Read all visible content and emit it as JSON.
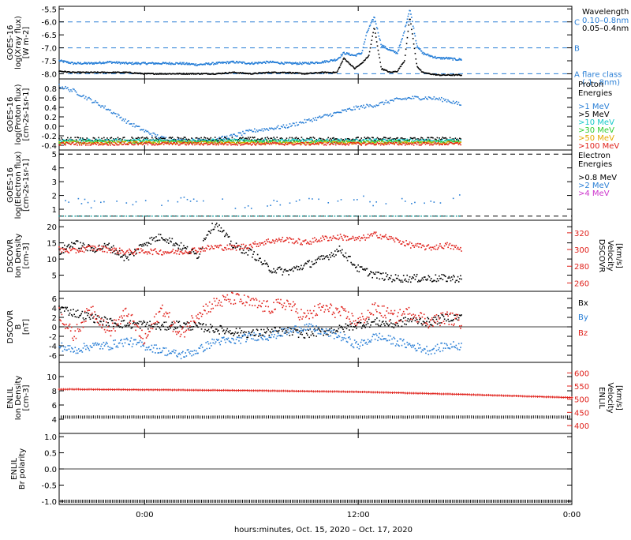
{
  "x_axis": {
    "label": "hours:minutes, Oct. 15, 2020 – Oct. 17, 2020",
    "range_hours": [
      -4.8,
      24
    ],
    "ticks": [
      {
        "x": 0,
        "label": "0:00"
      },
      {
        "x": 12,
        "label": "12:00"
      },
      {
        "x": 24,
        "label": "0:00"
      }
    ]
  },
  "chart_data": [
    {
      "type": "scatter",
      "panel": "xray",
      "ylabel_lines": [
        "GOES-16",
        "log(Xray flux)",
        "[W m-2]"
      ],
      "ylim": [
        -8.2,
        -5.4
      ],
      "yticks": [
        -8.0,
        -7.5,
        -7.0,
        -6.5,
        -6.0,
        -5.5
      ],
      "ytick_labels": [
        "-8.0",
        "-7.5",
        "-7.0",
        "-6.5",
        "-6.0",
        "-5.5"
      ],
      "reference_lines": [
        {
          "y": -6.0,
          "letter": "C"
        },
        {
          "y": -7.0,
          "letter": "B"
        },
        {
          "y": -8.0,
          "letter": "A"
        }
      ],
      "legend": {
        "title": "Wavelength",
        "entries": [
          {
            "label": "0.10–0.8nm",
            "color": "#2a7fd6"
          },
          {
            "label": "0.05–0.4nm",
            "color": "#000000"
          }
        ],
        "note_lines": [
          "flare class",
          "(.1–.8nm)"
        ]
      },
      "series": [
        {
          "name": "0.10–0.8nm",
          "color": "#1f7ad6",
          "x": [
            -4.8,
            -4,
            -3,
            -2,
            -1,
            0,
            1,
            2,
            3,
            4,
            5,
            6,
            7,
            8,
            9,
            10,
            10.8,
            11.2,
            11.8,
            12.2,
            12.5,
            12.9,
            13.3,
            13.8,
            14.2,
            14.5,
            14.9,
            15.3,
            15.6,
            16,
            16.5,
            17,
            17.5,
            17.8
          ],
          "y": [
            -7.5,
            -7.6,
            -7.6,
            -7.55,
            -7.6,
            -7.6,
            -7.6,
            -7.6,
            -7.65,
            -7.6,
            -7.55,
            -7.6,
            -7.55,
            -7.6,
            -7.6,
            -7.55,
            -7.45,
            -7.2,
            -7.3,
            -7.2,
            -6.4,
            -5.8,
            -6.9,
            -7.1,
            -7.2,
            -6.6,
            -5.5,
            -6.9,
            -7.2,
            -7.3,
            -7.4,
            -7.4,
            -7.45,
            -7.45
          ]
        },
        {
          "name": "0.05–0.4nm",
          "color": "#000000",
          "x": [
            -4.8,
            -4,
            -3,
            -2,
            -1,
            0,
            1,
            2,
            3,
            4,
            5,
            6,
            7,
            8,
            9,
            10,
            10.8,
            11.2,
            11.8,
            12.2,
            12.6,
            12.9,
            13.3,
            13.8,
            14.2,
            14.6,
            14.9,
            15.3,
            15.6,
            16,
            16.5,
            17,
            17.5,
            17.8
          ],
          "y": [
            -7.9,
            -7.95,
            -7.95,
            -7.95,
            -7.95,
            -8.0,
            -8.0,
            -8.0,
            -8.0,
            -8.0,
            -7.95,
            -8.0,
            -7.95,
            -7.95,
            -8.0,
            -7.95,
            -7.95,
            -7.4,
            -7.8,
            -7.6,
            -7.3,
            -6.2,
            -7.8,
            -7.95,
            -7.9,
            -7.5,
            -5.8,
            -7.7,
            -7.95,
            -8.0,
            -8.05,
            -8.05,
            -8.05,
            -8.05
          ]
        }
      ]
    },
    {
      "type": "scatter",
      "panel": "proton",
      "ylabel_lines": [
        "GOES-16",
        "log(Proton flux)",
        "[cm-2s-1sr-1]"
      ],
      "ylim": [
        -0.5,
        1.0
      ],
      "yticks": [
        -0.4,
        -0.2,
        0.0,
        0.2,
        0.4,
        0.6,
        0.8
      ],
      "ytick_labels": [
        "-0.4",
        "-0.2",
        "0.0",
        "0.2",
        "0.4",
        "0.6",
        "0.8"
      ],
      "legend": {
        "title_lines": [
          "Proton",
          "Energies"
        ],
        "entries": [
          {
            "label": ">1 MeV",
            "color": "#2a7fd6"
          },
          {
            "label": ">5 MeV",
            "color": "#000000"
          },
          {
            "label": ">10 MeV",
            "color": "#17c9c9"
          },
          {
            "label": ">30 MeV",
            "color": "#33cc33"
          },
          {
            "label": ">50 MeV",
            "color": "#e6a800"
          },
          {
            "label": ">100 MeV",
            "color": "#e0211b"
          }
        ]
      },
      "series": [
        {
          "name": ">1 MeV",
          "color": "#2a7fd6",
          "x": [
            -4.8,
            -4,
            -3,
            -2,
            -1,
            0,
            1,
            2,
            3,
            4,
            5,
            6,
            7,
            8,
            9,
            10,
            11,
            12,
            13,
            14,
            15,
            16,
            17,
            17.8
          ],
          "y": [
            0.85,
            0.75,
            0.55,
            0.35,
            0.1,
            -0.1,
            -0.25,
            -0.3,
            -0.3,
            -0.28,
            -0.2,
            -0.1,
            -0.05,
            0.0,
            0.1,
            0.2,
            0.3,
            0.4,
            0.45,
            0.55,
            0.6,
            0.6,
            0.55,
            0.45
          ]
        },
        {
          "name": ">5 MeV",
          "color": "#000000",
          "x": [
            -4.8,
            0,
            6,
            12,
            17.8
          ],
          "y": [
            -0.27,
            -0.27,
            -0.27,
            -0.27,
            -0.27
          ]
        },
        {
          "name": ">10 MeV",
          "color": "#17c9c9",
          "x": [
            -4.8,
            0,
            6,
            12,
            17.8
          ],
          "y": [
            -0.3,
            -0.3,
            -0.3,
            -0.3,
            -0.3
          ]
        },
        {
          "name": ">30 MeV",
          "color": "#33cc33",
          "x": [
            -4.8,
            0,
            6,
            12,
            17.8
          ],
          "y": [
            -0.33,
            -0.33,
            -0.33,
            -0.33,
            -0.33
          ]
        },
        {
          "name": ">50 MeV",
          "color": "#e6a800",
          "x": [
            -4.8,
            0,
            6,
            12,
            17.8
          ],
          "y": [
            -0.35,
            -0.35,
            -0.35,
            -0.35,
            -0.35
          ]
        },
        {
          "name": ">100 MeV",
          "color": "#e0211b",
          "x": [
            -4.8,
            0,
            6,
            12,
            17.8
          ],
          "y": [
            -0.37,
            -0.37,
            -0.37,
            -0.37,
            -0.37
          ]
        }
      ]
    },
    {
      "type": "scatter",
      "panel": "electron",
      "ylabel_lines": [
        "GOES-16",
        "log(Electron flux)",
        "[cm-2s-1sr-1]"
      ],
      "ylim": [
        0.2,
        5.3
      ],
      "yticks": [
        1,
        2,
        3,
        4,
        5
      ],
      "ytick_labels": [
        "1",
        "2",
        "3",
        "4",
        "5"
      ],
      "reference_lines": [
        {
          "y": 5.0
        },
        {
          "y": 0.5
        }
      ],
      "legend": {
        "title_lines": [
          "Electron",
          "Energies"
        ],
        "entries": [
          {
            "label": ">0.8 MeV",
            "color": "#000000"
          },
          {
            "label": ">2 MeV",
            "color": "#2a7fd6"
          },
          {
            "label": ">4 MeV",
            "color": "#cc33cc"
          }
        ]
      },
      "series": [
        {
          "name": ">2 MeV",
          "color": "#2a7fd6",
          "x": [
            -4.8,
            -4,
            -3,
            -2,
            -1,
            0,
            1,
            2,
            3,
            4,
            5,
            6,
            7,
            8,
            9,
            10,
            11,
            12,
            13,
            14,
            15,
            16,
            17,
            17.8
          ],
          "y": [
            1.5,
            1.8,
            1.3,
            1.6,
            1.2,
            1.9,
            1.5,
            1.8,
            1.4,
            1.9,
            1.3,
            1.0,
            1.4,
            1.6,
            1.8,
            1.5,
            1.7,
            1.9,
            1.4,
            1.8,
            1.6,
            1.3,
            1.7,
            1.9
          ]
        },
        {
          "name": ">0.8 MeV",
          "color": "#17a0a0",
          "x": [
            -4.8,
            0,
            6,
            12,
            17.8
          ],
          "y": [
            0.5,
            0.5,
            0.5,
            0.5,
            0.5
          ]
        }
      ]
    },
    {
      "type": "scatter",
      "panel": "dscovr_plasma",
      "ylabel_lines": [
        "DSCOVR",
        "Ion Density",
        "[cm-3]"
      ],
      "ylim": [
        0,
        22
      ],
      "yticks": [
        5,
        10,
        15,
        20
      ],
      "ytick_labels": [
        "5",
        "10",
        "15",
        "20"
      ],
      "y2label_lines": [
        "DSCOVR",
        "Velocity",
        "[km/s]"
      ],
      "y2lim": [
        250,
        335
      ],
      "y2ticks": [
        260,
        280,
        300,
        320
      ],
      "y2tick_labels": [
        "260",
        "280",
        "300",
        "320"
      ],
      "series": [
        {
          "name": "Ion Density",
          "color": "#000000",
          "axis": "left",
          "x": [
            -4.8,
            -4,
            -3,
            -2,
            -1,
            0,
            1,
            2,
            3,
            3.5,
            4,
            5,
            6,
            7,
            8,
            9,
            10,
            11,
            12,
            13,
            14,
            15,
            16,
            17,
            17.8
          ],
          "y": [
            12,
            15,
            13,
            14,
            10,
            15,
            17,
            14,
            11,
            18,
            21,
            14,
            12,
            7,
            6,
            8,
            10,
            13,
            7,
            5,
            4,
            4,
            4,
            4,
            4
          ]
        },
        {
          "name": "Velocity",
          "color": "#e0211b",
          "axis": "right",
          "x": [
            -4.8,
            -4,
            -3,
            -2,
            -1,
            0,
            1,
            2,
            3,
            4,
            5,
            6,
            7,
            8,
            9,
            10,
            11,
            12,
            13,
            14,
            15,
            16,
            17,
            17.8
          ],
          "y": [
            300,
            298,
            302,
            300,
            297,
            298,
            297,
            297,
            300,
            303,
            302,
            305,
            310,
            312,
            308,
            313,
            315,
            312,
            318,
            312,
            305,
            302,
            305,
            300
          ]
        }
      ]
    },
    {
      "type": "scatter",
      "panel": "dscovr_mag",
      "ylabel_lines": [
        "DSCOVR",
        "B",
        "[nT]"
      ],
      "ylim": [
        -7.5,
        7.5
      ],
      "yticks": [
        -6,
        -4,
        -2,
        0,
        2,
        4,
        6
      ],
      "ytick_labels": [
        "-6",
        "-4",
        "-2",
        "0",
        "2",
        "4",
        "6"
      ],
      "legend": {
        "entries": [
          {
            "label": "Bx",
            "color": "#000000"
          },
          {
            "label": "By",
            "color": "#2a7fd6"
          },
          {
            "label": "Bz",
            "color": "#e0211b"
          }
        ]
      },
      "series": [
        {
          "name": "Bx",
          "color": "#000000",
          "x": [
            -4.8,
            -4,
            -3,
            -2,
            -1,
            0,
            1,
            2,
            3,
            4,
            5,
            6,
            7,
            8,
            9,
            10,
            11,
            12,
            13,
            14,
            15,
            16,
            17,
            17.8
          ],
          "y": [
            4,
            3,
            2,
            1,
            0.5,
            0.5,
            0,
            0.5,
            0,
            -0.5,
            -1,
            -1.5,
            -1,
            -1,
            -1.5,
            -1,
            -0.5,
            0.5,
            1,
            0.5,
            1.5,
            1,
            2,
            2
          ]
        },
        {
          "name": "By",
          "color": "#2a7fd6",
          "x": [
            -4.8,
            -4,
            -3,
            -2,
            -1,
            0,
            1,
            2,
            3,
            4,
            5,
            6,
            7,
            8,
            9,
            10,
            11,
            12,
            13,
            14,
            15,
            16,
            17,
            17.8
          ],
          "y": [
            -4,
            -5,
            -4,
            -4,
            -3,
            -4,
            -5,
            -6,
            -5,
            -3,
            -3,
            -2,
            -2,
            -1,
            0,
            -1,
            -2,
            -4,
            -2,
            -3,
            -4,
            -5,
            -4,
            -4
          ]
        },
        {
          "name": "Bz",
          "color": "#e0211b",
          "x": [
            -4.8,
            -4,
            -3,
            -2,
            -1,
            0,
            1,
            2,
            3,
            4,
            5,
            6,
            7,
            8,
            9,
            10,
            11,
            12,
            13,
            14,
            15,
            16,
            17,
            17.8
          ],
          "y": [
            3,
            -2,
            4,
            -1,
            3,
            -3,
            4,
            -2,
            3,
            5,
            6,
            5,
            4,
            5,
            2,
            4,
            3,
            1,
            4,
            2,
            3,
            1,
            2,
            1
          ]
        }
      ]
    },
    {
      "type": "scatter",
      "panel": "enlil_plasma",
      "ylabel_lines": [
        "ENLIL",
        "Ion Density",
        "[cm-3]"
      ],
      "ylim": [
        2,
        12
      ],
      "yticks": [
        4,
        6,
        8,
        10
      ],
      "ytick_labels": [
        "4",
        "6",
        "8",
        "10"
      ],
      "y2label_lines": [
        "ENLIL",
        "Velocity",
        "[km/s]"
      ],
      "y2lim": [
        370,
        640
      ],
      "y2ticks": [
        400,
        450,
        500,
        550,
        600
      ],
      "y2tick_labels": [
        "400",
        "450",
        "500",
        "550",
        "600"
      ],
      "series": [
        {
          "name": "Velocity",
          "color": "#e0211b",
          "axis": "right",
          "x": [
            -4.8,
            0,
            6,
            12,
            18,
            24
          ],
          "y": [
            538,
            536,
            533,
            528,
            518,
            506
          ]
        },
        {
          "name": "Ion Density",
          "color": "#000000",
          "axis": "left",
          "x": [
            -4.8,
            0,
            6,
            12,
            18,
            24
          ],
          "y": [
            4.3,
            4.3,
            4.3,
            4.3,
            4.3,
            4.3
          ]
        }
      ]
    },
    {
      "type": "scatter",
      "panel": "enlil_polarity",
      "ylabel_lines": [
        "ENLIL",
        "Br polarity"
      ],
      "ylim": [
        -1.1,
        1.1
      ],
      "yticks": [
        -1.0,
        -0.5,
        0.0,
        0.5,
        1.0
      ],
      "ytick_labels": [
        "-1.0",
        "-0.5",
        "0.0",
        "0.5",
        "1.0"
      ],
      "series": [
        {
          "name": "Br polarity",
          "color": "#000000",
          "x": [
            -4.8,
            0,
            6,
            12,
            18,
            24
          ],
          "y": [
            -1,
            -1,
            -1,
            -1,
            -1,
            -1
          ]
        }
      ]
    }
  ]
}
